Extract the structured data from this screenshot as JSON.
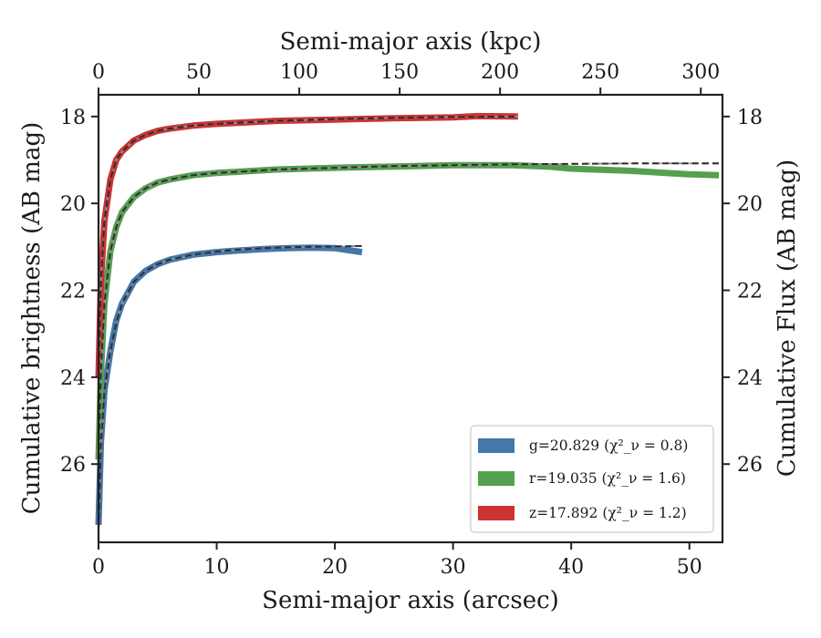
{
  "chart_data": {
    "type": "line",
    "title": "",
    "xlabel": "Semi-major axis (arcsec)",
    "xlabel_top": "Semi-major axis (kpc)",
    "ylabel": "Cumulative brightness (AB mag)",
    "ylabel_right": "Cumulative Flux (AB mag)",
    "xlim": [
      0,
      52.8
    ],
    "xlim_top_kpc": [
      0,
      310.8
    ],
    "ylim": [
      27.8,
      17.5
    ],
    "y_inverted": true,
    "grid": false,
    "legend_position": "lower-right",
    "xticks": [
      0,
      10,
      20,
      30,
      40,
      50
    ],
    "xticks_top": [
      0,
      50,
      100,
      150,
      200,
      250,
      300
    ],
    "yticks": [
      18,
      20,
      22,
      24,
      26
    ],
    "series": [
      {
        "name": "g",
        "legend": "g=20.829 (χ²_ν = 0.8)",
        "color": "#4477aa",
        "x": [
          0,
          0.2,
          0.5,
          1,
          1.5,
          2,
          3,
          4,
          5,
          6,
          8,
          10,
          12,
          14,
          16,
          18,
          20,
          21,
          22.3
        ],
        "y": [
          27.4,
          25.5,
          24.3,
          23.4,
          22.7,
          22.3,
          21.8,
          21.55,
          21.4,
          21.3,
          21.18,
          21.12,
          21.08,
          21.05,
          21.03,
          21.02,
          21.03,
          21.07,
          21.12
        ],
        "model_x": [
          0,
          0.2,
          0.5,
          1,
          1.5,
          2,
          3,
          4,
          5,
          6,
          8,
          10,
          12,
          14,
          16,
          18,
          20,
          22.3
        ],
        "model_y": [
          27.5,
          25.6,
          24.3,
          23.4,
          22.75,
          22.3,
          21.8,
          21.55,
          21.4,
          21.3,
          21.18,
          21.11,
          21.06,
          21.03,
          21.01,
          21.0,
          20.99,
          20.98
        ]
      },
      {
        "name": "r",
        "legend": "r=19.035 (χ²_ν = 1.6)",
        "color": "#55a050",
        "x": [
          0,
          0.2,
          0.5,
          1,
          1.5,
          2,
          3,
          4,
          5,
          6,
          8,
          10,
          15,
          20,
          25,
          30,
          35,
          38,
          40,
          42,
          45,
          48,
          50,
          52.5
        ],
        "y": [
          25.9,
          23.9,
          22.3,
          21.1,
          20.55,
          20.2,
          19.85,
          19.65,
          19.52,
          19.45,
          19.35,
          19.3,
          19.22,
          19.18,
          19.15,
          19.12,
          19.12,
          19.15,
          19.2,
          19.22,
          19.25,
          19.3,
          19.33,
          19.35
        ],
        "model_x": [
          0,
          0.2,
          0.5,
          1,
          1.5,
          2,
          3,
          4,
          5,
          6,
          8,
          10,
          15,
          20,
          25,
          30,
          35,
          40,
          45,
          52.5
        ],
        "model_y": [
          25.9,
          23.9,
          22.3,
          21.1,
          20.55,
          20.2,
          19.85,
          19.65,
          19.52,
          19.45,
          19.35,
          19.3,
          19.22,
          19.18,
          19.14,
          19.12,
          19.1,
          19.09,
          19.08,
          19.08
        ]
      },
      {
        "name": "z",
        "legend": "z=17.892 (χ²_ν = 1.2)",
        "color": "#cc3333",
        "x": [
          0,
          0.2,
          0.5,
          1,
          1.5,
          2,
          3,
          4,
          5,
          6,
          8,
          10,
          15,
          20,
          25,
          30,
          32,
          35.5
        ],
        "y": [
          24.0,
          21.8,
          20.4,
          19.45,
          19.0,
          18.8,
          18.55,
          18.42,
          18.33,
          18.28,
          18.21,
          18.17,
          18.1,
          18.07,
          18.04,
          18.02,
          17.99,
          18.0
        ],
        "model_x": [
          0,
          0.2,
          0.5,
          1,
          1.5,
          2,
          3,
          4,
          5,
          6,
          8,
          10,
          15,
          20,
          25,
          30,
          35.5
        ],
        "model_y": [
          24.0,
          21.8,
          20.4,
          19.45,
          19.0,
          18.8,
          18.55,
          18.42,
          18.33,
          18.28,
          18.21,
          18.17,
          18.1,
          18.06,
          18.03,
          18.01,
          18.0
        ]
      }
    ]
  }
}
